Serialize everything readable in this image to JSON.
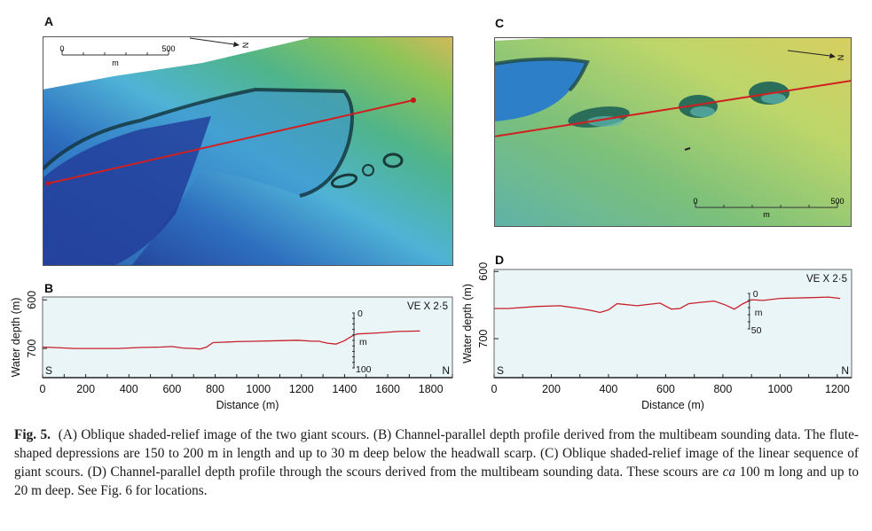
{
  "figure": {
    "panels": {
      "A": {
        "label": "A",
        "scale_start": "0",
        "scale_end": "500",
        "scale_unit": "m",
        "north": "N"
      },
      "B": {
        "label": "B"
      },
      "C": {
        "label": "C",
        "scale_start": "0",
        "scale_end": "500",
        "scale_unit": "m",
        "north": "N"
      },
      "D": {
        "label": "D"
      }
    },
    "caption": {
      "fig_label": "Fig. 5.",
      "part1": "(A) Oblique shaded-relief image of the two giant scours. (B) Channel-parallel depth profile derived from the multibeam sounding data. The flute-shaped depressions are 150 to 200 m in length and up to 30 m deep below the headwall scarp. (C) Oblique shaded-relief image of the linear sequence of giant scours. (D) Channel-parallel depth profile through the scours derived from the multibeam sounding data. These scours are ",
      "italic": "ca",
      "part2": " 100 m long and up to 20 m deep. See Fig. 6 for locations."
    }
  },
  "chart_data": [
    {
      "id": "B",
      "type": "line",
      "title": "",
      "xlabel": "Distance (m)",
      "ylabel": "Water depth (m)",
      "xlim": [
        0,
        1900
      ],
      "ylim": [
        760,
        594
      ],
      "xticks": [
        0,
        200,
        400,
        600,
        800,
        1000,
        1200,
        1400,
        1600,
        1800
      ],
      "yticks": [
        600,
        700
      ],
      "annotation": "VE X 2·5",
      "left_label": "S",
      "right_label": "N",
      "scale_bar": {
        "top": "0",
        "mid": "m",
        "bottom": "100"
      },
      "grid": false,
      "series": [
        {
          "name": "depth profile",
          "x": [
            0,
            50,
            150,
            250,
            350,
            450,
            550,
            600,
            650,
            700,
            730,
            760,
            790,
            900,
            1000,
            1100,
            1180,
            1250,
            1280,
            1320,
            1360,
            1400,
            1440,
            1460,
            1550,
            1650,
            1750
          ],
          "y": [
            697,
            698,
            700,
            700,
            700,
            698,
            697,
            696,
            699,
            700,
            701,
            697,
            688,
            686,
            685,
            684,
            683,
            685,
            685,
            689,
            691,
            684,
            673,
            670,
            668,
            665,
            664
          ]
        }
      ]
    },
    {
      "id": "D",
      "type": "line",
      "title": "",
      "xlabel": "Distance (m)",
      "ylabel": "Water depth (m)",
      "xlim": [
        0,
        1250
      ],
      "ylim": [
        758,
        597
      ],
      "xticks": [
        0,
        200,
        400,
        600,
        800,
        1000,
        1200
      ],
      "yticks": [
        600,
        700
      ],
      "annotation": "VE X 2·5",
      "left_label": "S",
      "right_label": "N",
      "scale_bar": {
        "top": "0",
        "mid": "m",
        "bottom": "50"
      },
      "grid": false,
      "series": [
        {
          "name": "depth profile",
          "x": [
            0,
            50,
            150,
            230,
            300,
            340,
            370,
            400,
            430,
            500,
            540,
            580,
            620,
            650,
            680,
            720,
            770,
            810,
            840,
            870,
            900,
            940,
            1000,
            1100,
            1170,
            1210
          ],
          "y": [
            655,
            655,
            652,
            651,
            655,
            658,
            661,
            657,
            648,
            651,
            649,
            647,
            656,
            655,
            648,
            646,
            644,
            650,
            656,
            648,
            642,
            643,
            640,
            639,
            638,
            640
          ]
        }
      ]
    }
  ]
}
